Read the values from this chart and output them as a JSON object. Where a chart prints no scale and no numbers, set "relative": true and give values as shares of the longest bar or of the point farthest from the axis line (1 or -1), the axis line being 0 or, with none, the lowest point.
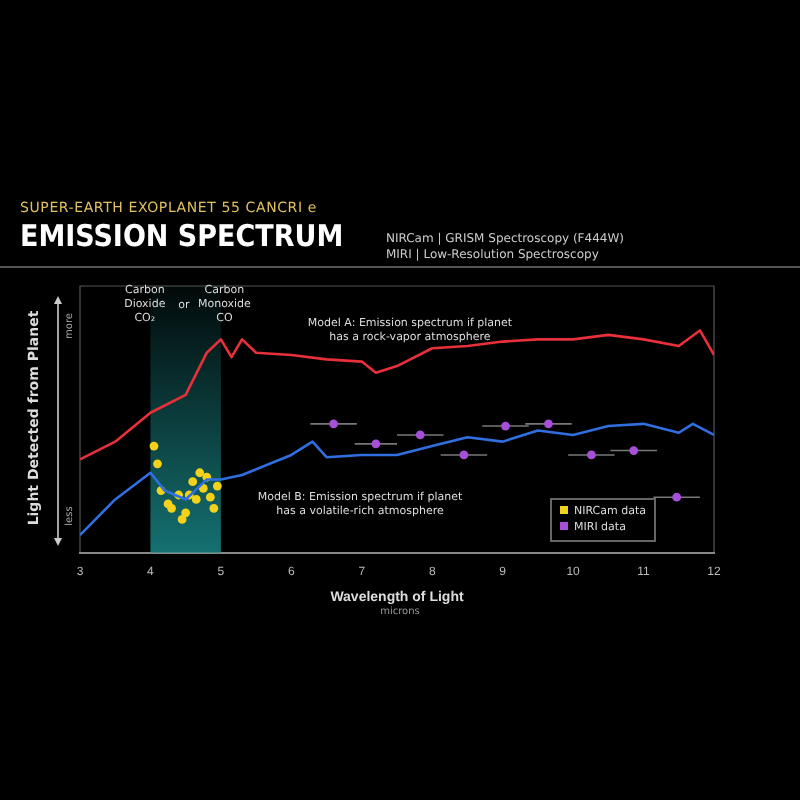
{
  "chart_data": {
    "type": "line",
    "subtitle": "SUPER-EARTH EXOPLANET 55 CANCRI e",
    "title": "EMISSION SPECTRUM",
    "xlabel": "Wavelength of Light",
    "ylabel": "Light Detected from Planet",
    "relative": true,
    "xlim": [
      3,
      12
    ],
    "xticks": [
      3,
      4,
      5,
      6,
      7,
      8,
      9,
      10,
      11,
      12
    ],
    "grid": false,
    "legend": "bottom right",
    "series": [
      {
        "color": "#e8303a",
        "x": [
          3,
          3.5,
          4,
          4.5,
          4.8,
          5,
          5.15,
          5.3,
          5.5,
          6,
          6.5,
          7,
          7.2,
          7.5,
          8,
          8.5,
          9,
          9.5,
          10,
          10.5,
          11,
          11.5,
          11.8,
          12
        ],
        "values": [
          0.42,
          0.5,
          0.63,
          0.71,
          0.9,
          0.96,
          0.88,
          0.96,
          0.9,
          0.89,
          0.87,
          0.86,
          0.81,
          0.84,
          0.92,
          0.93,
          0.95,
          0.96,
          0.96,
          0.98,
          0.96,
          0.93,
          1,
          0.89
        ]
      },
      {
        "color": "#2f6fe0",
        "x": [
          3,
          3.5,
          4,
          4.2,
          4.5,
          4.8,
          5,
          5.3,
          6,
          6.3,
          6.5,
          7,
          7.5,
          8,
          8.5,
          9,
          9.5,
          10,
          10.5,
          11,
          11.5,
          11.7,
          12
        ],
        "values": [
          0.08,
          0.24,
          0.36,
          0.28,
          0.24,
          0.33,
          0.33,
          0.35,
          0.44,
          0.5,
          0.43,
          0.44,
          0.44,
          0.48,
          0.52,
          0.5,
          0.55,
          0.53,
          0.57,
          0.58,
          0.54,
          0.58,
          0.53
        ]
      },
      {
        "type": "scatter",
        "name": "NIRCam data",
        "color": "#f2d21b",
        "x": [
          4.05,
          4.1,
          4.15,
          4.25,
          4.3,
          4.4,
          4.45,
          4.5,
          4.55,
          4.6,
          4.65,
          4.7,
          4.75,
          4.8,
          4.85,
          4.9,
          4.95
        ],
        "values": [
          0.48,
          0.4,
          0.28,
          0.22,
          0.2,
          0.26,
          0.15,
          0.18,
          0.26,
          0.32,
          0.24,
          0.36,
          0.29,
          0.34,
          0.25,
          0.2,
          0.3
        ]
      },
      {
        "type": "scatter",
        "name": "MIRI data",
        "color": "#a64fd8",
        "x": [
          6.6,
          7.2,
          7.83,
          8.45,
          9.04,
          9.65,
          10.26,
          10.86,
          11.47
        ],
        "values": [
          0.58,
          0.49,
          0.53,
          0.44,
          0.57,
          0.58,
          0.44,
          0.46,
          0.25
        ],
        "xerrors": [
          0.33,
          0.3,
          0.33,
          0.33,
          0.33,
          0.33,
          0.33,
          0.33,
          0.33
        ]
      }
    ],
    "bands": [
      {
        "axis": "x",
        "from": 4,
        "to": 5,
        "color": "#1a8a8a"
      }
    ],
    "annotations": [
      {
        "text": "Carbon\nDioxide\nCO₂",
        "x": 3.92,
        "y": 1.12
      },
      "or",
      {
        "text": "Carbon\nMonoxide\nCO",
        "x": 5.05,
        "y": 1.12
      },
      "Model A: Emission spectrum if planet\nhas a rock-vapor atmosphere",
      "Model B: Emission spectrum if planet\nhas a volatile-rich atmosphere",
      "more",
      "less",
      "microns",
      "NIRCam | GRISM Spectroscopy (F444W)",
      "MIRI | Low-Resolution Spectroscopy"
    ]
  }
}
